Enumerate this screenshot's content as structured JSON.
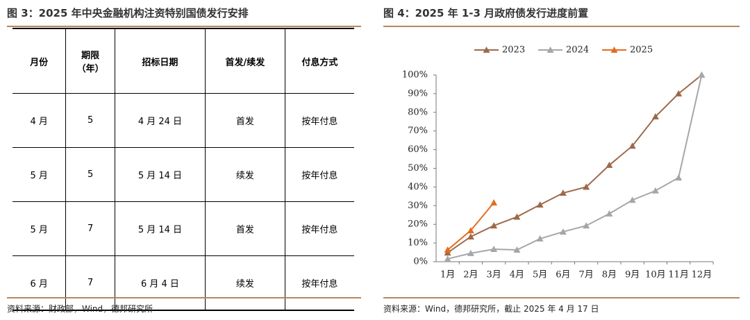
{
  "left": {
    "title": "图 3：2025 年中央金融机构注资特别国债发行安排",
    "table": {
      "header": [
        "月份",
        "期限\n（年）",
        "招标日期",
        "首发/续发",
        "付息方式"
      ],
      "rows": [
        [
          "4 月",
          "5",
          "4 月 24 日",
          "首发",
          "按年付息"
        ],
        [
          "5 月",
          "5",
          "5 月 14 日",
          "续发",
          "按年付息"
        ],
        [
          "5 月",
          "7",
          "5 月 14 日",
          "首发",
          "按年付息"
        ],
        [
          "6 月",
          "7",
          "6 月 4 日",
          "续发",
          "按年付息"
        ]
      ]
    },
    "source": "资料来源：财政部，Wind，德邦研究所"
  },
  "chart_data": {
    "type": "line",
    "title": "图 4：2025 年 1-3 月政府债发行进度前置",
    "source": "资料来源：Wind，德邦研究所，截止 2025 年 4 月 17 日",
    "categories": [
      "1月",
      "2月",
      "3月",
      "4月",
      "5月",
      "6月",
      "7月",
      "8月",
      "9月",
      "10月",
      "11月",
      "12月"
    ],
    "series": [
      {
        "name": "2023",
        "color": "#9c6a4a",
        "values": [
          4.8,
          13.4,
          19.3,
          24,
          30.5,
          36.8,
          40,
          51.7,
          62,
          77.7,
          90,
          100
        ]
      },
      {
        "name": "2024",
        "color": "#a6a6a6",
        "values": [
          1.5,
          4.5,
          6.7,
          6.3,
          12.3,
          16,
          19.3,
          25.7,
          33,
          38,
          45,
          100
        ]
      },
      {
        "name": "2025",
        "color": "#e46c1e",
        "values": [
          6.3,
          16.7,
          31.6,
          null,
          null,
          null,
          null,
          null,
          null,
          null,
          null,
          null
        ]
      }
    ],
    "ylim": [
      0,
      100
    ],
    "yticks": [
      {
        "value": 0,
        "label": "0%"
      },
      {
        "value": 10,
        "label": "10%"
      },
      {
        "value": 20,
        "label": "20%"
      },
      {
        "value": 30,
        "label": "30%"
      },
      {
        "value": 40,
        "label": "40%"
      },
      {
        "value": 50,
        "label": "50%"
      },
      {
        "value": 60,
        "label": "60%"
      },
      {
        "value": 70,
        "label": "70%"
      },
      {
        "value": 80,
        "label": "80%"
      },
      {
        "value": 90,
        "label": "90%"
      },
      {
        "value": 100,
        "label": "100%"
      }
    ],
    "grid": false,
    "legend": "top",
    "marker": "triangle"
  }
}
